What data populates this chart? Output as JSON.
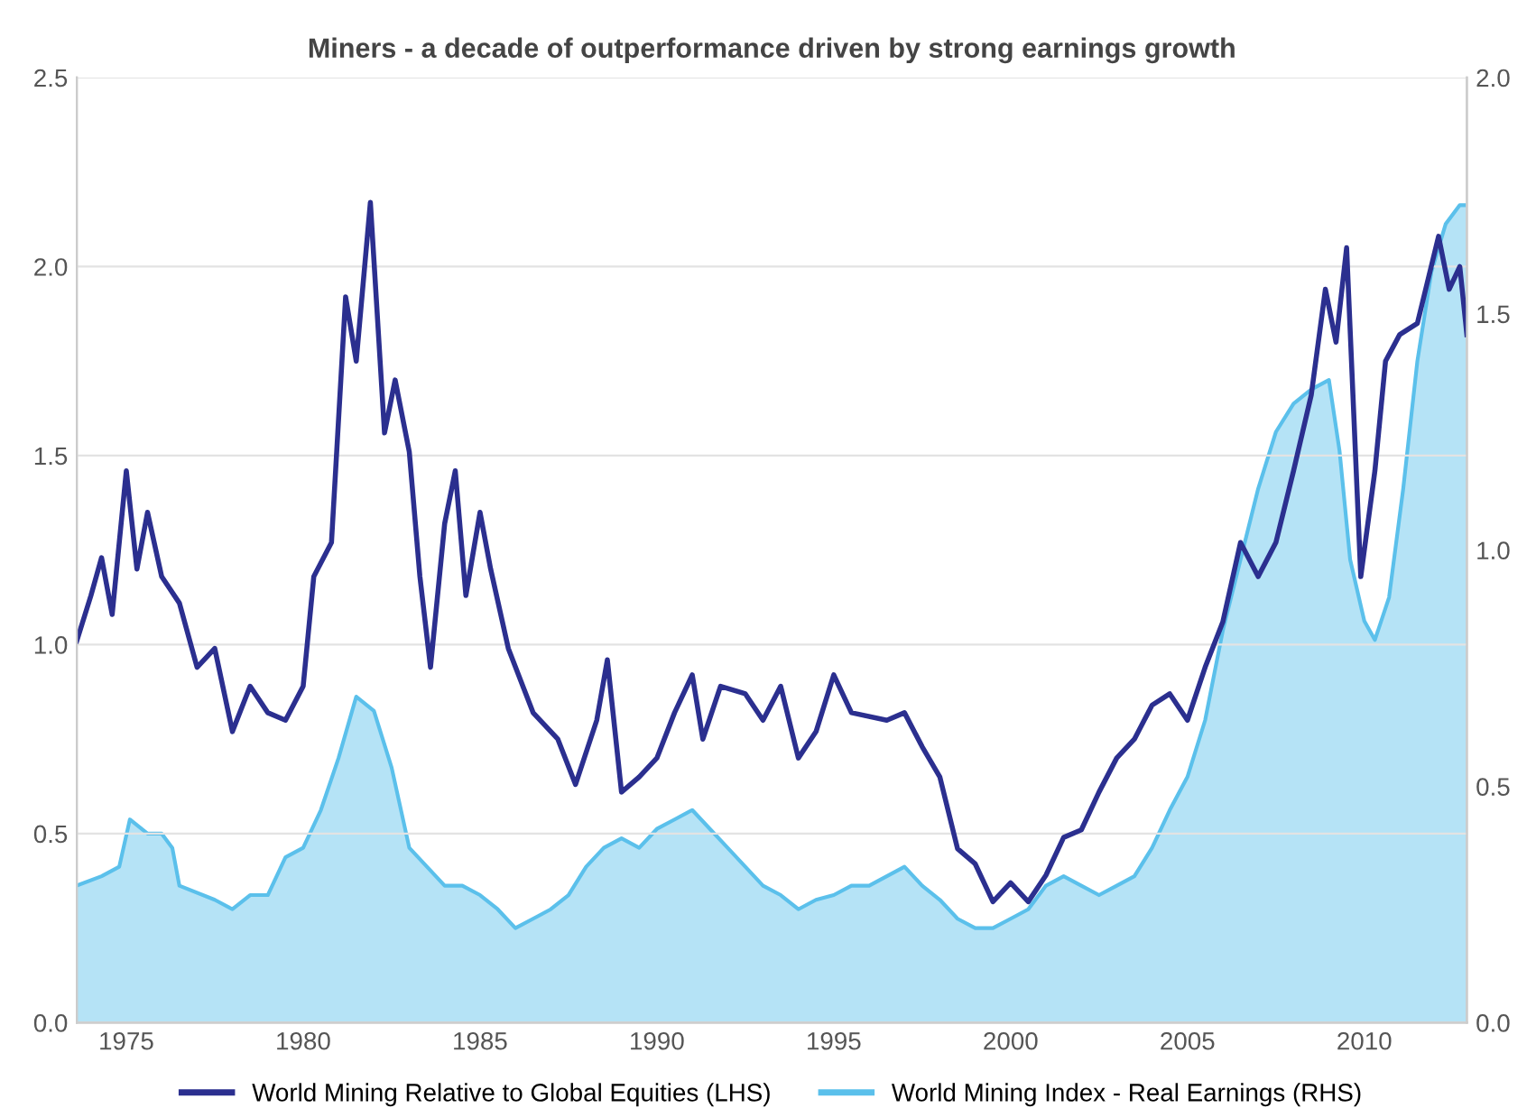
{
  "chart_data": {
    "type": "line",
    "title": "Miners - a decade of outperformance driven by strong earnings growth",
    "xlim": [
      1973.6,
      2012.9
    ],
    "xticks": [
      1975,
      1980,
      1985,
      1990,
      1995,
      2000,
      2005,
      2010
    ],
    "ylim": [
      0,
      2.5
    ],
    "yticks": [
      {
        "value": 0,
        "label": "0.0"
      },
      {
        "value": 0.5,
        "label": "0.5"
      },
      {
        "value": 1,
        "label": "1.0"
      },
      {
        "value": 1.5,
        "label": "1.5"
      },
      {
        "value": 2,
        "label": "2.0"
      },
      {
        "value": 2.5,
        "label": "2.5"
      }
    ],
    "y2lim": [
      0,
      2.0
    ],
    "y2ticks": [
      {
        "value": 0,
        "label": "0.0"
      },
      {
        "value": 0.5,
        "label": "0.5"
      },
      {
        "value": 1,
        "label": "1.0"
      },
      {
        "value": 1.5,
        "label": "1.5"
      },
      {
        "value": 2,
        "label": "2.0"
      }
    ],
    "grid": "y",
    "legend": "bottom",
    "marker": "none",
    "line_style": "solid",
    "series": [
      {
        "name": "World Mining Index - Real Earnings (RHS)",
        "type": "area",
        "axis": "y2",
        "color": "#5bc0eb",
        "x": [
          1973.6,
          1974.3,
          1974.8,
          1975.1,
          1975.6,
          1976,
          1976.3,
          1976.5,
          1977.5,
          1978,
          1978.5,
          1979,
          1979.5,
          1980,
          1980.5,
          1981,
          1981.5,
          1982,
          1982.5,
          1983,
          1983.5,
          1984,
          1984.5,
          1985,
          1985.5,
          1986,
          1986.5,
          1987,
          1987.5,
          1988,
          1988.5,
          1989,
          1989.5,
          1990,
          1990.5,
          1991,
          1991.5,
          1992,
          1992.5,
          1993,
          1993.5,
          1994,
          1994.5,
          1995,
          1995.5,
          1996,
          1996.5,
          1997,
          1997.5,
          1998,
          1998.5,
          1999,
          1999.5,
          2000,
          2000.5,
          2001,
          2001.5,
          2002,
          2002.5,
          2003,
          2003.5,
          2004,
          2004.5,
          2005,
          2005.5,
          2006,
          2006.5,
          2007,
          2007.5,
          2008,
          2008.5,
          2009,
          2009.3,
          2009.6,
          2010,
          2010.3,
          2010.7,
          2011.1,
          2011.5,
          2011.9,
          2012.3,
          2012.7,
          2012.9
        ],
        "values": [
          0.29,
          0.31,
          0.33,
          0.43,
          0.4,
          0.4,
          0.37,
          0.29,
          0.26,
          0.24,
          0.27,
          0.27,
          0.35,
          0.37,
          0.45,
          0.56,
          0.69,
          0.66,
          0.54,
          0.37,
          0.33,
          0.29,
          0.29,
          0.27,
          0.24,
          0.2,
          0.22,
          0.24,
          0.27,
          0.33,
          0.37,
          0.39,
          0.37,
          0.41,
          0.43,
          0.45,
          0.41,
          0.37,
          0.33,
          0.29,
          0.27,
          0.24,
          0.26,
          0.27,
          0.29,
          0.29,
          0.31,
          0.33,
          0.29,
          0.26,
          0.22,
          0.2,
          0.2,
          0.22,
          0.24,
          0.29,
          0.31,
          0.29,
          0.27,
          0.29,
          0.31,
          0.37,
          0.45,
          0.52,
          0.64,
          0.83,
          0.98,
          1.13,
          1.25,
          1.31,
          1.34,
          1.36,
          1.21,
          0.98,
          0.85,
          0.81,
          0.9,
          1.13,
          1.4,
          1.59,
          1.69,
          1.73,
          1.73
        ]
      },
      {
        "name": "World Mining Relative to Global Equities (LHS)",
        "color": "#2b2f8f",
        "x": [
          1973.6,
          1974.0,
          1974.3,
          1974.6,
          1975.0,
          1975.3,
          1975.6,
          1976,
          1976.5,
          1977,
          1977.5,
          1978,
          1978.5,
          1979,
          1979.5,
          1980,
          1980.3,
          1980.8,
          1981.2,
          1981.5,
          1981.9,
          1982.3,
          1982.6,
          1983.0,
          1983.3,
          1983.6,
          1984.0,
          1984.3,
          1984.6,
          1985.0,
          1985.3,
          1985.8,
          1986.5,
          1987.2,
          1987.7,
          1988.3,
          1988.6,
          1989.0,
          1989.5,
          1990.0,
          1990.5,
          1991.0,
          1991.3,
          1991.8,
          1992.5,
          1993.0,
          1993.5,
          1994,
          1994.5,
          1995,
          1995.5,
          1996.5,
          1997,
          1997.5,
          1998,
          1998.5,
          1999,
          1999.5,
          2000,
          2000.5,
          2001,
          2001.5,
          2002,
          2002.5,
          2003,
          2003.5,
          2004,
          2004.5,
          2005,
          2005.5,
          2006,
          2006.5,
          2007,
          2007.5,
          2008,
          2008.5,
          2008.9,
          2009.2,
          2009.5,
          2009.9,
          2010.3,
          2010.6,
          2011.0,
          2011.5,
          2012.1,
          2012.4,
          2012.7,
          2012.9
        ],
        "values": [
          1.01,
          1.13,
          1.23,
          1.08,
          1.46,
          1.2,
          1.35,
          1.18,
          1.11,
          0.94,
          0.99,
          0.77,
          0.89,
          0.82,
          0.8,
          0.89,
          1.18,
          1.27,
          1.92,
          1.75,
          2.17,
          1.56,
          1.7,
          1.51,
          1.18,
          0.94,
          1.32,
          1.46,
          1.13,
          1.35,
          1.2,
          0.99,
          0.82,
          0.75,
          0.63,
          0.8,
          0.96,
          0.61,
          0.65,
          0.7,
          0.82,
          0.92,
          0.75,
          0.89,
          0.87,
          0.8,
          0.89,
          0.7,
          0.77,
          0.92,
          0.82,
          0.8,
          0.82,
          0.73,
          0.65,
          0.46,
          0.42,
          0.32,
          0.37,
          0.32,
          0.39,
          0.49,
          0.51,
          0.61,
          0.7,
          0.75,
          0.84,
          0.87,
          0.8,
          0.94,
          1.06,
          1.27,
          1.18,
          1.27,
          1.46,
          1.66,
          1.94,
          1.8,
          2.05,
          1.18,
          1.46,
          1.75,
          1.82,
          1.85,
          2.08,
          1.94,
          2.0,
          1.82
        ]
      }
    ]
  }
}
